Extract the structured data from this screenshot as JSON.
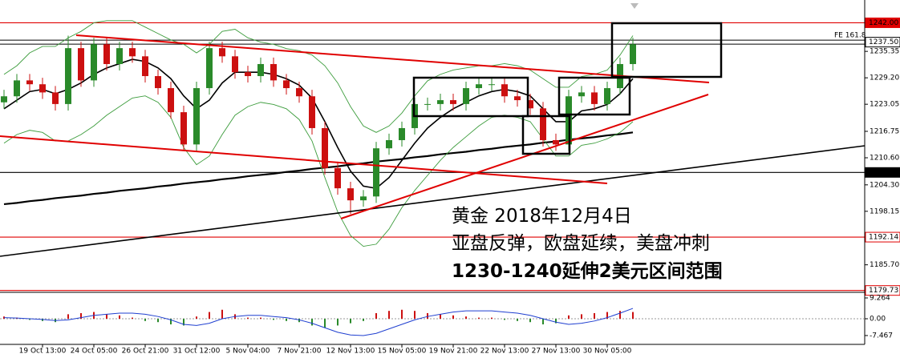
{
  "chart_data": {
    "type": "candlestick",
    "categories": [
      null,
      null,
      null,
      "19 Oct 13:00",
      null,
      null,
      null,
      "24 Oct 05:00",
      null,
      null,
      null,
      "26 Oct 21:00",
      null,
      null,
      null,
      "31 Oct 12:00",
      null,
      null,
      null,
      "5 Nov 04:00",
      null,
      null,
      null,
      "7 Nov 21:00",
      null,
      null,
      null,
      "12 Nov 13:00",
      null,
      null,
      null,
      "15 Nov 05:00",
      null,
      null,
      null,
      "19 Nov 21:00",
      null,
      null,
      null,
      "22 Nov 13:00",
      null,
      null,
      null,
      "27 Nov 13:00",
      null,
      null,
      null,
      "30 Nov 05:00",
      null,
      null
    ],
    "open": [
      1223.5,
      1224.9,
      1228.6,
      1227.7,
      1225.8,
      1223.1,
      1236.1,
      1228.6,
      1237.0,
      1232.4,
      1236.1,
      1234.2,
      1229.6,
      1226.8,
      1221.2,
      1213.7,
      1226.8,
      1236.1,
      1234.2,
      1230.5,
      1229.6,
      1232.4,
      1228.6,
      1226.8,
      1224.9,
      1217.5,
      1208.2,
      1203.5,
      1200.7,
      1201.6,
      1212.8,
      1214.7,
      1217.5,
      1223.1,
      1223.1,
      1224.0,
      1223.1,
      1226.8,
      1227.7,
      1227.7,
      1224.9,
      1224.0,
      1222.1,
      1214.7,
      1213.7,
      1224.9,
      1225.8,
      1223.1,
      1226.8,
      1232.4
    ],
    "high": [
      1226.4,
      1230.1,
      1230.1,
      1229.2,
      1227.3,
      1239.0,
      1237.6,
      1238.5,
      1238.5,
      1237.6,
      1237.6,
      1235.7,
      1231.1,
      1228.3,
      1222.7,
      1228.3,
      1237.6,
      1237.6,
      1235.7,
      1232.0,
      1233.9,
      1233.9,
      1230.1,
      1228.3,
      1226.4,
      1219.0,
      1209.7,
      1205.0,
      1203.1,
      1214.3,
      1216.2,
      1219.0,
      1224.6,
      1224.6,
      1225.5,
      1225.5,
      1228.3,
      1229.2,
      1229.2,
      1229.2,
      1226.4,
      1225.5,
      1223.6,
      1216.2,
      1226.4,
      1227.3,
      1227.3,
      1228.3,
      1233.9,
      1238.5
    ],
    "low": [
      1222.0,
      1223.4,
      1226.2,
      1224.3,
      1221.6,
      1221.6,
      1227.1,
      1227.1,
      1230.9,
      1230.9,
      1232.7,
      1228.1,
      1225.3,
      1219.7,
      1212.2,
      1212.2,
      1225.3,
      1232.7,
      1229.0,
      1228.1,
      1228.1,
      1227.1,
      1225.3,
      1223.4,
      1216.0,
      1206.7,
      1202.0,
      1197.5,
      1199.2,
      1200.1,
      1211.3,
      1213.2,
      1216.0,
      1221.6,
      1221.6,
      1221.6,
      1221.6,
      1225.3,
      1226.2,
      1223.4,
      1222.5,
      1220.6,
      1213.2,
      1212.2,
      1212.2,
      1223.4,
      1221.6,
      1221.6,
      1225.3,
      1230.9
    ],
    "close": [
      1224.9,
      1228.6,
      1227.7,
      1225.8,
      1223.1,
      1236.1,
      1228.6,
      1237.0,
      1232.4,
      1236.1,
      1234.2,
      1229.6,
      1226.8,
      1221.2,
      1213.7,
      1226.8,
      1236.1,
      1234.2,
      1230.5,
      1229.6,
      1232.4,
      1228.6,
      1226.8,
      1224.9,
      1217.5,
      1208.2,
      1203.5,
      1200.7,
      1201.6,
      1212.8,
      1214.7,
      1217.5,
      1223.1,
      1223.1,
      1224.0,
      1223.1,
      1226.8,
      1227.7,
      1227.7,
      1224.9,
      1224.0,
      1222.1,
      1214.7,
      1213.7,
      1224.9,
      1225.8,
      1223.1,
      1226.8,
      1232.4,
      1237.0
    ],
    "up_color": "#2a8a2a",
    "down_color": "#cc1010",
    "lines": [
      {
        "color": "#000000",
        "width": 1.6,
        "values": [
          1222,
          1224,
          1226,
          1226.5,
          1225.5,
          1226.5,
          1228,
          1230,
          1231.5,
          1232.5,
          1233.5,
          1233,
          1231.5,
          1229,
          1225,
          1222,
          1224,
          1228,
          1230.5,
          1230.5,
          1230.5,
          1230,
          1229,
          1227.5,
          1224.5,
          1219,
          1213,
          1207.5,
          1204,
          1203.5,
          1206,
          1210,
          1214,
          1217.5,
          1220,
          1222,
          1223.5,
          1225,
          1226,
          1226.5,
          1226,
          1225,
          1222,
          1219,
          1219,
          1221.5,
          1222,
          1223,
          1225.5,
          1229
        ]
      },
      {
        "color": "#000000",
        "width": 2.2,
        "values": [
          1199.8,
          1200.1,
          1200.5,
          1200.8,
          1201.2,
          1201.5,
          1201.8,
          1202.2,
          1202.5,
          1202.9,
          1203.2,
          1203.5,
          1203.9,
          1204.2,
          1204.6,
          1204.9,
          1205.2,
          1205.6,
          1205.9,
          1206.3,
          1206.6,
          1206.9,
          1207.3,
          1207.6,
          1208.0,
          1208.3,
          1208.6,
          1209.0,
          1209.3,
          1209.7,
          1210.0,
          1210.3,
          1210.7,
          1211.0,
          1211.4,
          1211.7,
          1212.0,
          1212.4,
          1212.7,
          1213.1,
          1213.4,
          1213.7,
          1214.1,
          1214.4,
          1214.8,
          1215.1,
          1215.4,
          1215.8,
          1216.1,
          1216.5
        ]
      },
      {
        "color": "#3c9c3c",
        "width": 0.9,
        "values": [
          1230,
          1232,
          1235,
          1236.5,
          1236.5,
          1238.5,
          1240,
          1242,
          1242.5,
          1242.5,
          1242.5,
          1241,
          1239.5,
          1238,
          1237,
          1235,
          1237,
          1240,
          1240.5,
          1238.5,
          1237.5,
          1237,
          1236,
          1235.5,
          1234.5,
          1232,
          1228,
          1222.5,
          1218,
          1216.5,
          1218,
          1221,
          1225,
          1228.5,
          1230,
          1231,
          1231.5,
          1232,
          1232,
          1232.5,
          1232,
          1231,
          1229,
          1227,
          1227,
          1229.5,
          1230,
          1231,
          1234.5,
          1239
        ]
      },
      {
        "color": "#3c9c3c",
        "width": 0.9,
        "values": [
          1214,
          1216,
          1217,
          1216.5,
          1214.5,
          1214.5,
          1216,
          1218,
          1220.5,
          1222.5,
          1224.5,
          1225,
          1223.5,
          1220,
          1213,
          1209,
          1211,
          1216,
          1220.5,
          1222.5,
          1223.5,
          1223,
          1222,
          1219.5,
          1214.5,
          1206,
          1198,
          1192.5,
          1190,
          1190.5,
          1194,
          1199,
          1203,
          1206.5,
          1210,
          1213,
          1215.5,
          1218,
          1220,
          1220.5,
          1220,
          1219,
          1215,
          1211,
          1211,
          1213.5,
          1214,
          1215,
          1216.5,
          1219
        ]
      }
    ],
    "ylim": [
      1179.3,
      1247.3
    ],
    "yticks": [
      {
        "value": 1235.35,
        "label": "1235.35"
      },
      {
        "value": 1229.2,
        "label": "1229.20"
      },
      {
        "value": 1223.05,
        "label": "1223.05"
      },
      {
        "value": 1216.75,
        "label": "1216.75"
      },
      {
        "value": 1210.6,
        "label": "1210.60"
      },
      {
        "value": 1204.3,
        "label": "1204.30"
      },
      {
        "value": 1198.15,
        "label": "1198.15"
      },
      {
        "value": 1185.7,
        "label": "1185.70"
      }
    ],
    "levels": [
      {
        "value": 1242,
        "label": "1242.00",
        "color": "#e00000",
        "label_fill": true
      },
      {
        "value": 1237.5,
        "label": "1237.50",
        "color": "#000000",
        "label_fill": false
      },
      {
        "value": 1207.19,
        "label": "1207.19",
        "color": "#000000",
        "label_fill": true
      },
      {
        "value": 1192.14,
        "label": "1192.14",
        "color": "#e00000",
        "label_fill": false
      },
      {
        "value": 1179.73,
        "label": "1179.73",
        "color": "#e00000",
        "label_fill": false
      }
    ],
    "fe_label": "FE 161.8",
    "annotation": [
      "黄金 2018年12月4日",
      "亚盘反弹，欧盘延续，美盘冲刺",
      "1230-1240延伸2美元区间范围"
    ],
    "macd": {
      "histogram": [
        1,
        0.5,
        -0.5,
        -1,
        -1.5,
        2,
        2.5,
        3,
        2,
        1.5,
        0.5,
        -1,
        -1.5,
        -2.5,
        -3,
        1,
        3,
        4,
        2,
        0.5,
        0.5,
        -0.5,
        -1,
        -1.5,
        -3,
        -4,
        -3,
        -2,
        -1,
        2.5,
        3.5,
        4,
        3.5,
        2.5,
        2,
        1.5,
        1,
        0.5,
        0.5,
        -0.5,
        -1,
        -1.5,
        -2.5,
        -2,
        1.5,
        2,
        2.5,
        3,
        3.5,
        3
      ],
      "signal": [
        0.5,
        0.3,
        0,
        -0.3,
        -0.8,
        -0.5,
        0.5,
        1.5,
        2,
        2.5,
        2.5,
        2,
        1,
        -0.5,
        -2.5,
        -3,
        -2,
        0,
        1,
        1.5,
        1.5,
        1,
        0.5,
        -0.5,
        -2,
        -4,
        -6,
        -7.2,
        -7.5,
        -6.5,
        -4.5,
        -2.5,
        -0.5,
        1,
        2,
        3,
        3.5,
        3.5,
        3.5,
        3,
        2.5,
        1.5,
        0,
        -1.5,
        -2.5,
        -2,
        -1,
        0.5,
        2.5,
        4.6
      ],
      "signal_color": "#1f3fd0",
      "ylim": [
        -11.4,
        11.4
      ],
      "yticks": [
        9.264,
        {
          "value": 0,
          "label": "0.00"
        },
        -7.467
      ]
    }
  }
}
